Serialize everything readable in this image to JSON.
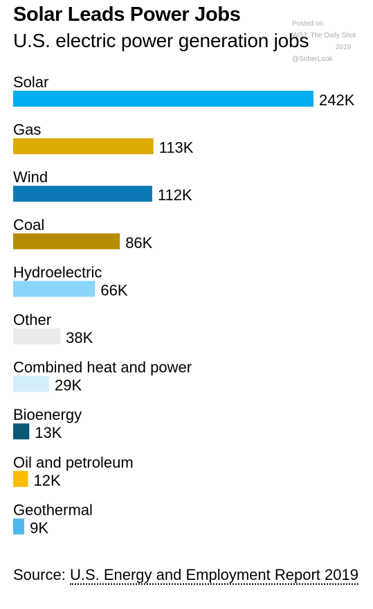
{
  "header": {
    "title": "Solar Leads Power Jobs",
    "subtitle": "U.S. electric power generation jobs"
  },
  "watermark": {
    "line1": "Posted on",
    "line2": "WSJ: The Daily Shot",
    "line3": "2019",
    "line4": "@SoberLook"
  },
  "chart_data": {
    "type": "bar",
    "orientation": "horizontal",
    "title": "Solar Leads Power Jobs",
    "subtitle": "U.S. electric power generation jobs",
    "unit": "K",
    "categories": [
      "Solar",
      "Gas",
      "Wind",
      "Coal",
      "Hydroelectric",
      "Other",
      "Combined heat and power",
      "Bioenergy",
      "Oil and petroleum",
      "Geothermal"
    ],
    "values": [
      242,
      113,
      112,
      86,
      66,
      38,
      29,
      13,
      12,
      9
    ],
    "value_labels": [
      "242K",
      "113K",
      "112K",
      "86K",
      "66K",
      "38K",
      "29K",
      "13K",
      "12K",
      "9K"
    ],
    "colors": [
      "#00aeef",
      "#dcaa00",
      "#0a79b4",
      "#b68c00",
      "#8ad6fa",
      "#ebebeb",
      "#d3edfb",
      "#0b5876",
      "#fbbd00",
      "#4fb8ee"
    ],
    "grid": false,
    "legend": "none"
  },
  "source": {
    "prefix": "Source: ",
    "link": "U.S. Energy and Employment Report 2019"
  }
}
